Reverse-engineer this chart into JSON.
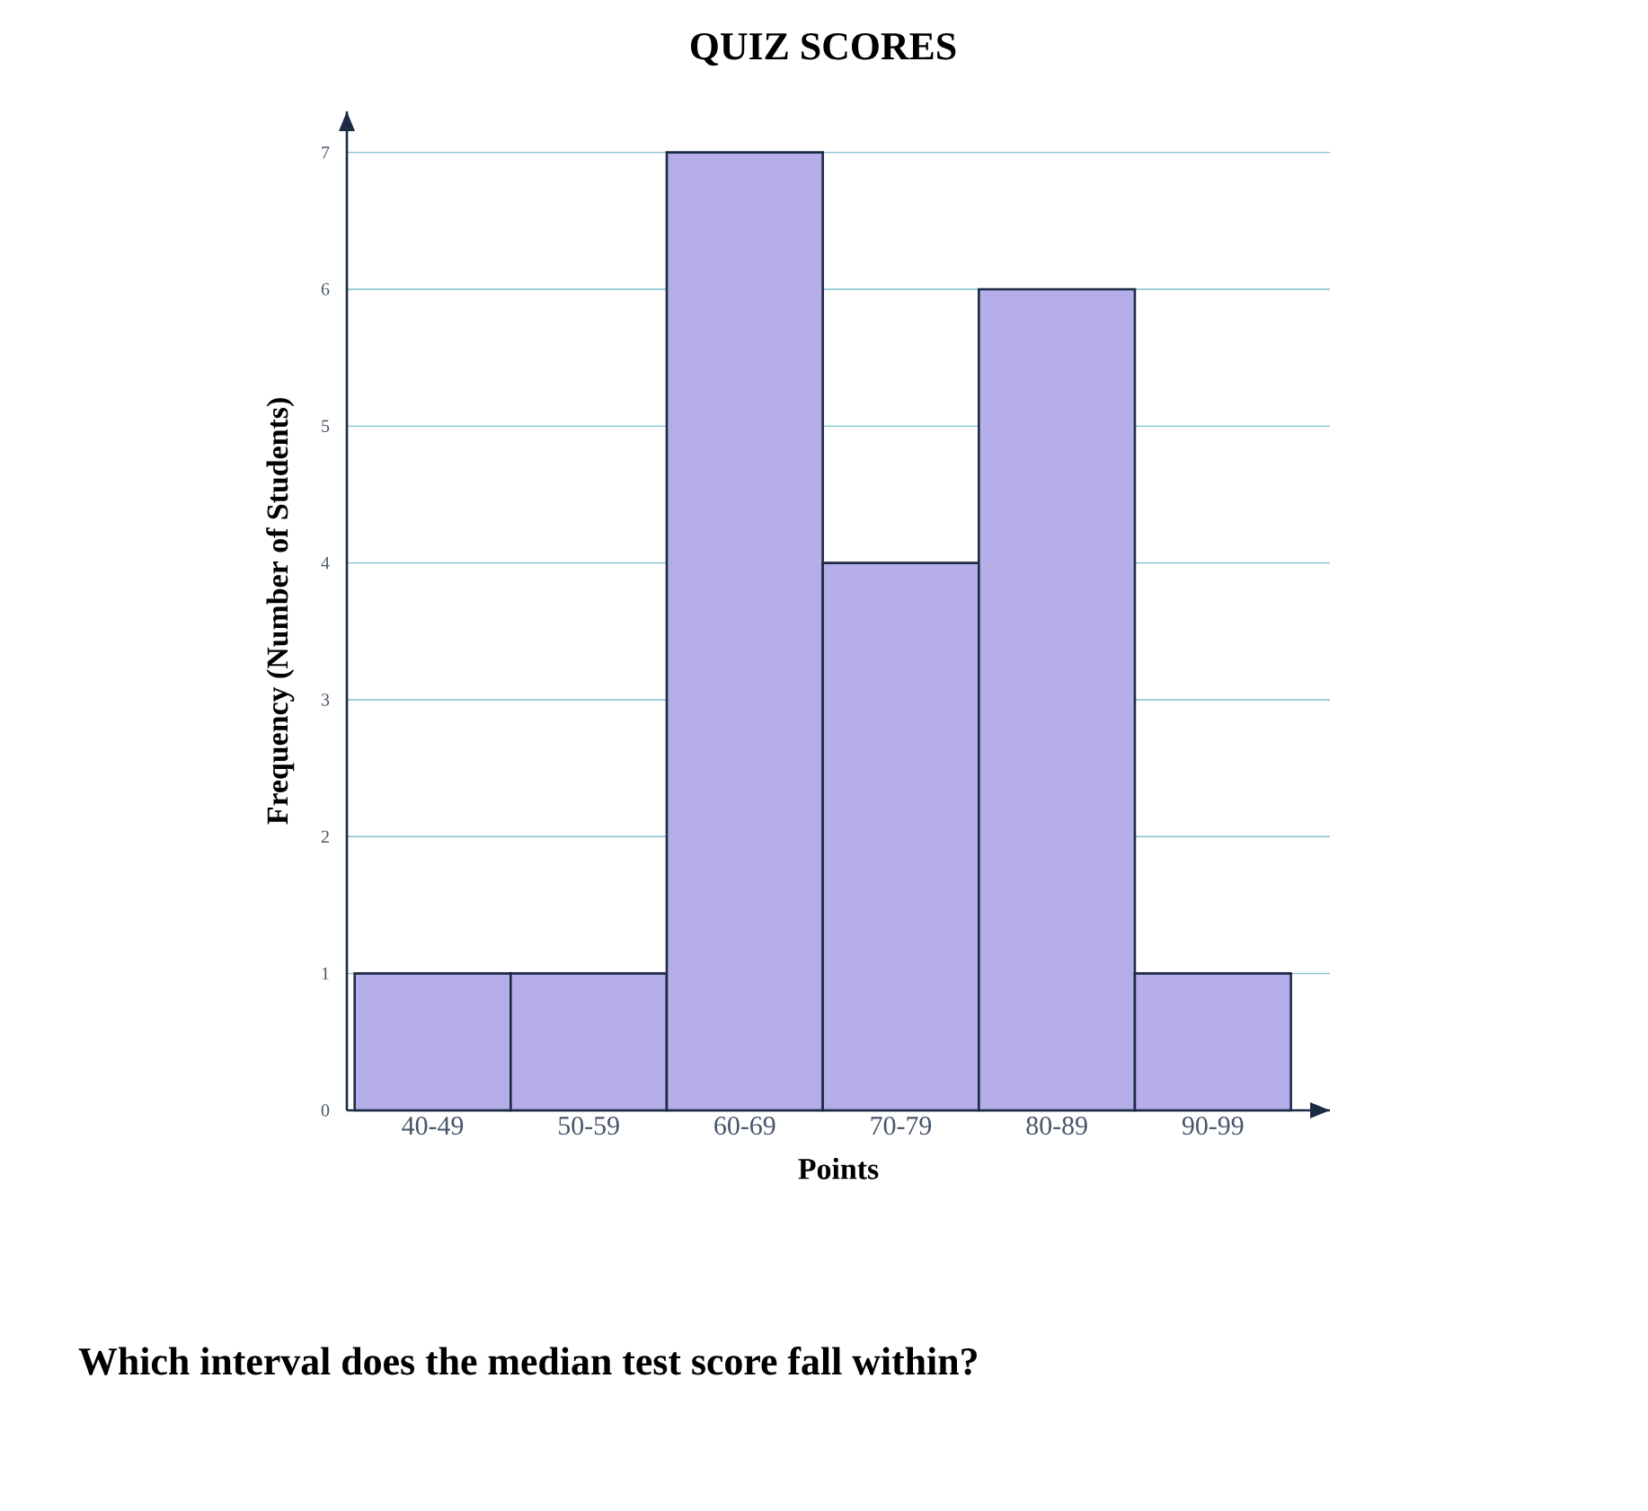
{
  "chart_data": {
    "type": "bar",
    "title": "QUIZ SCORES",
    "xlabel": "Points",
    "ylabel": "Frequency (Number of Students)",
    "categories": [
      "40-49",
      "50-59",
      "60-69",
      "70-79",
      "80-89",
      "90-99"
    ],
    "values": [
      1,
      1,
      7,
      4,
      6,
      1
    ],
    "color": "#b5ade8",
    "ylim": [
      0,
      7.3
    ],
    "yticks": [
      0,
      1,
      2,
      3,
      4,
      5,
      6,
      7
    ],
    "grid": "y",
    "annotations": [
      "Which interval does the median test score fall within?"
    ]
  }
}
